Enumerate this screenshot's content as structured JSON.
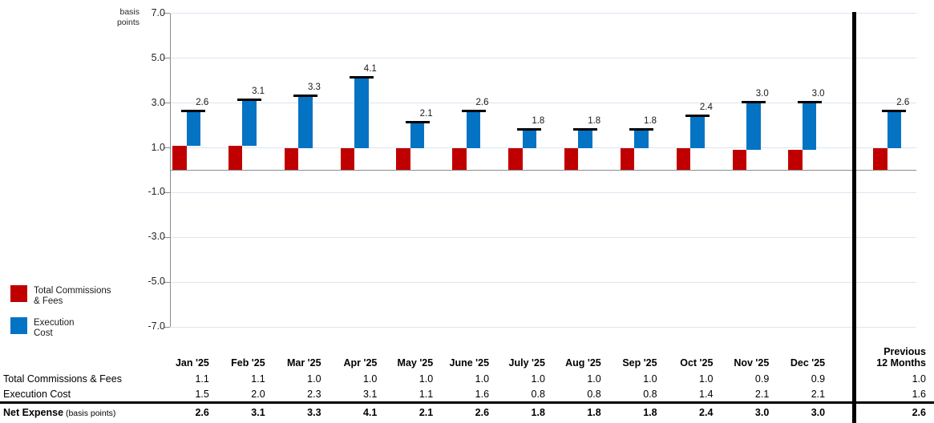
{
  "chart": {
    "unit_label_lines": [
      "basis",
      "points"
    ],
    "colors": {
      "total_commissions_fees": "#C00000",
      "execution_cost": "#0473C4",
      "gridline": "#DCE6F1",
      "axis": "#8C8C8C",
      "separator": "#000000",
      "total_cap": "#000000"
    },
    "legend": [
      {
        "id": "total-commissions-fees",
        "label_lines": [
          "Total Commissions",
          "& Fees"
        ],
        "color": "#C00000"
      },
      {
        "id": "execution-cost",
        "label_lines": [
          "Execution",
          "Cost"
        ],
        "color": "#0473C4"
      }
    ]
  },
  "chart_data": {
    "type": "bar",
    "subtype": "stacked_waterfall_columns",
    "title": "",
    "ylabel": "basis points",
    "ylim": [
      -7.0,
      7.0
    ],
    "y_ticks": [
      7.0,
      5.0,
      3.0,
      1.0,
      -1.0,
      -3.0,
      -5.0,
      -7.0
    ],
    "grid": true,
    "legend_position": "bottom-left",
    "categories": [
      "Jan '25",
      "Feb '25",
      "Mar '25",
      "Apr '25",
      "May '25",
      "June '25",
      "July '25",
      "Aug '25",
      "Sep '25",
      "Oct '25",
      "Nov '25",
      "Dec '25",
      "Previous 12 Months"
    ],
    "series": [
      {
        "name": "Total Commissions & Fees",
        "color": "#C00000",
        "values": [
          1.1,
          1.1,
          1.0,
          1.0,
          1.0,
          1.0,
          1.0,
          1.0,
          1.0,
          1.0,
          0.9,
          0.9,
          1.0
        ]
      },
      {
        "name": "Execution Cost",
        "color": "#0473C4",
        "values": [
          1.5,
          2.0,
          2.3,
          3.1,
          1.1,
          1.6,
          0.8,
          0.8,
          0.8,
          1.4,
          2.1,
          2.1,
          1.6
        ]
      }
    ],
    "totals": [
      2.6,
      3.1,
      3.3,
      4.1,
      2.1,
      2.6,
      1.8,
      1.8,
      1.8,
      2.4,
      3.0,
      3.0,
      2.6
    ]
  },
  "table": {
    "month_headers": [
      "Jan '25",
      "Feb '25",
      "Mar '25",
      "Apr '25",
      "May '25",
      "June '25",
      "July '25",
      "Aug '25",
      "Sep '25",
      "Oct '25",
      "Nov '25",
      "Dec '25"
    ],
    "last_header_lines": [
      "Previous",
      "12 Months"
    ],
    "rows": [
      {
        "id": "total-commissions-fees",
        "label": "Total Commissions & Fees",
        "suffix": "",
        "bold": false,
        "values": [
          "1.1",
          "1.1",
          "1.0",
          "1.0",
          "1.0",
          "1.0",
          "1.0",
          "1.0",
          "1.0",
          "1.0",
          "0.9",
          "0.9"
        ],
        "last_value": "1.0"
      },
      {
        "id": "execution-cost",
        "label": "Execution Cost",
        "suffix": "",
        "bold": false,
        "values": [
          "1.5",
          "2.0",
          "2.3",
          "3.1",
          "1.1",
          "1.6",
          "0.8",
          "0.8",
          "0.8",
          "1.4",
          "2.1",
          "2.1"
        ],
        "last_value": "1.6"
      },
      {
        "id": "net-expense",
        "label": "Net Expense",
        "suffix": "(basis points)",
        "bold": true,
        "values": [
          "2.6",
          "3.1",
          "3.3",
          "4.1",
          "2.1",
          "2.6",
          "1.8",
          "1.8",
          "1.8",
          "2.4",
          "3.0",
          "3.0"
        ],
        "last_value": "2.6"
      }
    ]
  }
}
